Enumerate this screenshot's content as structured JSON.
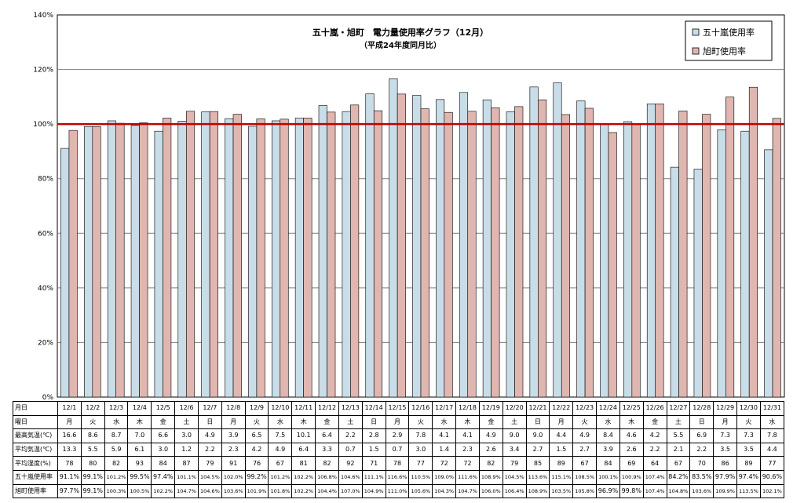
{
  "chart_data": {
    "type": "bar",
    "title": "五十嵐・旭町　電力量使用率グラフ（12月）",
    "subtitle": "（平成24年度同月比）",
    "ylim": [
      0,
      140
    ],
    "yticks": [
      "0%",
      "20%",
      "40%",
      "60%",
      "80%",
      "100%",
      "120%",
      "140%"
    ],
    "reference_line": 100,
    "grid": true,
    "legend_position": "top-right",
    "categories": [
      "12/1",
      "12/2",
      "12/3",
      "12/4",
      "12/5",
      "12/6",
      "12/7",
      "12/8",
      "12/9",
      "12/10",
      "12/11",
      "12/12",
      "12/13",
      "12/14",
      "12/15",
      "12/16",
      "12/17",
      "12/18",
      "12/19",
      "12/20",
      "12/21",
      "12/22",
      "12/23",
      "12/24",
      "12/25",
      "12/26",
      "12/27",
      "12/28",
      "12/29",
      "12/30",
      "12/31"
    ],
    "series": [
      {
        "name": "五十嵐使用率",
        "color": "#c8dde8",
        "values": [
          91.1,
          99.1,
          101.2,
          99.5,
          97.4,
          101.1,
          104.5,
          102.0,
          99.2,
          101.2,
          102.2,
          106.8,
          104.6,
          111.1,
          116.6,
          110.5,
          109.0,
          111.6,
          108.9,
          104.5,
          113.6,
          115.1,
          108.5,
          100.1,
          100.9,
          107.4,
          84.2,
          83.5,
          97.9,
          97.4,
          90.6
        ]
      },
      {
        "name": "旭町使用率",
        "color": "#e0b6b0",
        "values": [
          97.7,
          99.1,
          100.3,
          100.5,
          102.2,
          104.7,
          104.6,
          103.6,
          101.9,
          101.8,
          102.2,
          104.4,
          107.0,
          104.9,
          111.0,
          105.6,
          104.3,
          104.7,
          106.0,
          106.4,
          108.9,
          103.5,
          105.8,
          96.9,
          99.8,
          107.4,
          104.8,
          103.6,
          109.9,
          113.5,
          102.1
        ]
      }
    ]
  },
  "table": {
    "row_labels": [
      "月日",
      "曜日",
      "最高気温(℃)",
      "平均気温(℃)",
      "平均湿度(%)",
      "五十嵐使用率",
      "旭町使用率"
    ],
    "weekday": [
      "月",
      "火",
      "水",
      "木",
      "金",
      "土",
      "日",
      "月",
      "火",
      "水",
      "木",
      "金",
      "土",
      "日",
      "月",
      "火",
      "水",
      "木",
      "金",
      "土",
      "日",
      "月",
      "火",
      "水",
      "木",
      "金",
      "土",
      "日",
      "月",
      "火",
      "水"
    ],
    "max_temp": [
      "16.6",
      "8.6",
      "8.7",
      "7.0",
      "6.6",
      "3.0",
      "4.9",
      "3.9",
      "6.5",
      "7.5",
      "10.1",
      "6.4",
      "2.2",
      "2.8",
      "2.9",
      "7.8",
      "4.1",
      "4.1",
      "4.9",
      "9.0",
      "9.0",
      "4.4",
      "4.9",
      "8.4",
      "4.6",
      "4.2",
      "5.5",
      "6.9",
      "7.3",
      "7.3",
      "7.8"
    ],
    "avg_temp": [
      "13.3",
      "5.5",
      "5.9",
      "6.1",
      "3.0",
      "1.2",
      "2.2",
      "2.3",
      "4.2",
      "4.9",
      "6.4",
      "3.3",
      "0.7",
      "1.5",
      "0.7",
      "3.0",
      "1.4",
      "2.3",
      "2.6",
      "3.4",
      "2.7",
      "1.5",
      "2.7",
      "3.9",
      "2.6",
      "2.2",
      "2.1",
      "2.2",
      "3.5",
      "3.5",
      "4.4"
    ],
    "humidity": [
      "78",
      "80",
      "82",
      "93",
      "84",
      "87",
      "79",
      "91",
      "76",
      "67",
      "81",
      "82",
      "92",
      "71",
      "78",
      "77",
      "72",
      "72",
      "82",
      "79",
      "85",
      "89",
      "67",
      "84",
      "69",
      "64",
      "67",
      "70",
      "86",
      "89",
      "77"
    ],
    "ikarashi": [
      "91.1%",
      "99.1%",
      "101.2%",
      "99.5%",
      "97.4%",
      "101.1%",
      "104.5%",
      "102.0%",
      "99.2%",
      "101.2%",
      "102.2%",
      "106.8%",
      "104.6%",
      "111.1%",
      "116.6%",
      "110.5%",
      "109.0%",
      "111.6%",
      "108.9%",
      "104.5%",
      "113.6%",
      "115.1%",
      "108.5%",
      "100.1%",
      "100.9%",
      "107.4%",
      "84.2%",
      "83.5%",
      "97.9%",
      "97.4%",
      "90.6%"
    ],
    "asahimachi": [
      "97.7%",
      "99.1%",
      "100.3%",
      "100.5%",
      "102.2%",
      "104.7%",
      "104.6%",
      "103.6%",
      "101.9%",
      "101.8%",
      "102.2%",
      "104.4%",
      "107.0%",
      "104.9%",
      "111.0%",
      "105.6%",
      "104.3%",
      "104.7%",
      "106.0%",
      "106.4%",
      "108.9%",
      "103.5%",
      "105.8%",
      "96.9%",
      "99.8%",
      "107.4%",
      "104.8%",
      "103.6%",
      "109.9%",
      "113.5%",
      "102.1%"
    ]
  }
}
